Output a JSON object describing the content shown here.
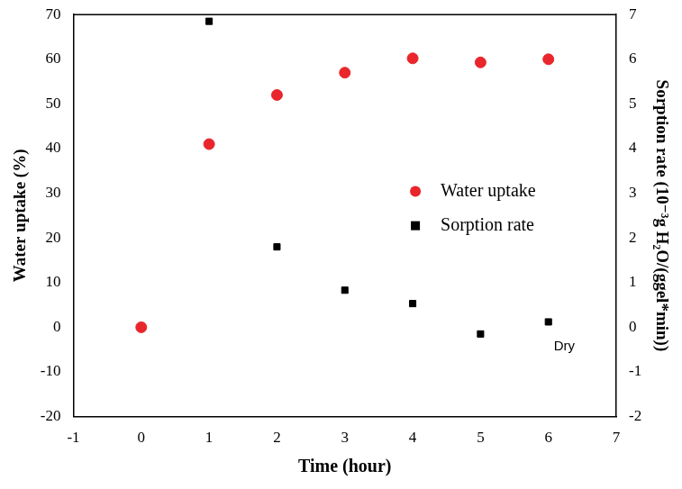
{
  "chart_data": {
    "type": "scatter",
    "x": [
      0,
      1,
      2,
      3,
      4,
      5,
      6
    ],
    "series": [
      {
        "name": "Water uptake",
        "color": "#e8262b",
        "marker": "circle",
        "values": [
          0,
          41,
          52,
          57,
          60.2,
          59.3,
          60
        ]
      },
      {
        "name": "Sorption rate",
        "color": "#000000",
        "marker": "square",
        "axis": "y2",
        "values": [
          null,
          6.85,
          1.8,
          0.83,
          0.53,
          -0.15,
          0.12
        ]
      }
    ],
    "x_label": "Time (hour)",
    "y_label": "Water uptake (%)",
    "y2_label": "Sorption rate (10⁻³g H₂O/(ggel*min))",
    "xlim": [
      -1,
      7
    ],
    "xticks": [
      -1,
      0,
      1,
      2,
      3,
      4,
      5,
      6,
      7
    ],
    "ylim": [
      -20,
      70
    ],
    "yticks": [
      -20,
      -10,
      0,
      10,
      20,
      30,
      40,
      50,
      60,
      70
    ],
    "y2lim": [
      -2,
      7
    ],
    "y2ticks": [
      -2,
      -1,
      0,
      1,
      2,
      3,
      4,
      5,
      6,
      7
    ],
    "grid": false,
    "legend": "right",
    "annotations": [
      "Dry"
    ]
  }
}
